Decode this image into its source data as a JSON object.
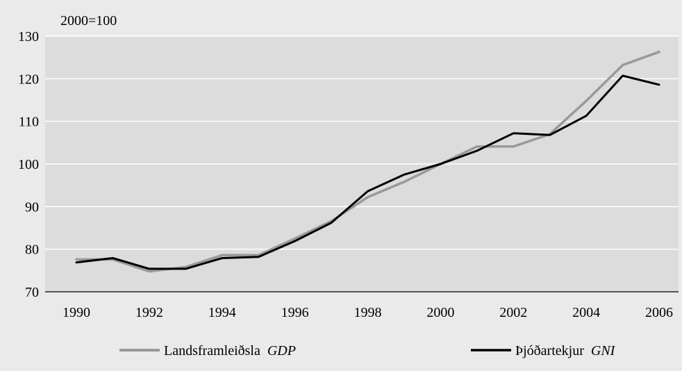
{
  "chart_data": {
    "type": "line",
    "unit_label": "2000=100",
    "x": [
      1990,
      1991,
      1992,
      1993,
      1994,
      1995,
      1996,
      1997,
      1998,
      1999,
      2000,
      2001,
      2002,
      2003,
      2004,
      2005,
      2006
    ],
    "x_tick_labels": [
      "1990",
      "1992",
      "1994",
      "1996",
      "1998",
      "2000",
      "2002",
      "2004",
      "2006"
    ],
    "y_tick_labels": [
      "70",
      "80",
      "90",
      "100",
      "110",
      "120",
      "130"
    ],
    "ylim": [
      70,
      130
    ],
    "xlim": [
      1990,
      2006
    ],
    "grid": true,
    "legend_position": "bottom",
    "series": [
      {
        "name": "Landsframleiðsla",
        "name_italic": "GDP",
        "color": "#999999",
        "values": [
          77.6,
          77.6,
          74.8,
          75.8,
          78.6,
          78.6,
          82.5,
          86.6,
          92.2,
          95.8,
          100.0,
          104.1,
          104.1,
          107.0,
          114.8,
          123.2,
          126.3
        ]
      },
      {
        "name": "Þjóðartekjur",
        "name_italic": "GNI",
        "color": "#000000",
        "values": [
          76.9,
          77.9,
          75.4,
          75.4,
          77.9,
          78.2,
          81.9,
          86.2,
          93.6,
          97.5,
          100.0,
          103.1,
          107.2,
          106.8,
          111.3,
          120.7,
          118.6
        ]
      }
    ]
  }
}
